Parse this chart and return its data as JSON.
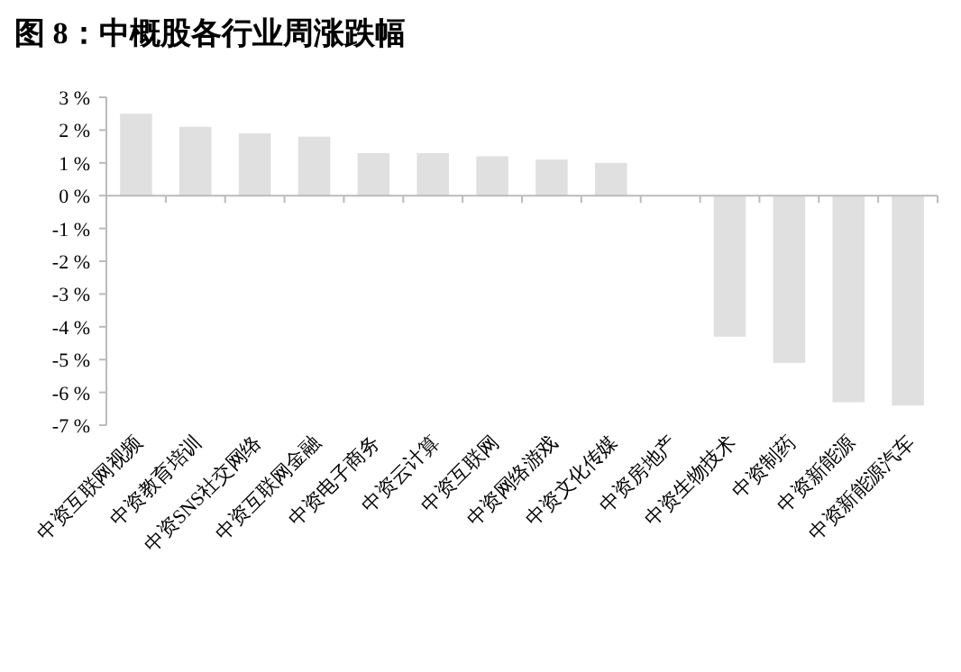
{
  "chart_data": {
    "type": "bar",
    "title": "图 8：中概股各行业周涨跌幅",
    "categories": [
      "中资互联网视频",
      "中资教育培训",
      "中资SNS社交网络",
      "中资互联网金融",
      "中资电子商务",
      "中资云计算",
      "中资互联网",
      "中资网络游戏",
      "中资文化传媒",
      "中资房地产",
      "中资生物技术",
      "中资制药",
      "中资新能源",
      "中资新能源汽车"
    ],
    "values": [
      2.5,
      2.1,
      1.9,
      1.8,
      1.3,
      1.3,
      1.2,
      1.1,
      1.0,
      0,
      -4.3,
      -5.1,
      -6.3,
      -6.4
    ],
    "color": "#e0e0e0",
    "ylim": [
      -7,
      3
    ],
    "yticks": [
      {
        "value": 3,
        "label": "3 %"
      },
      {
        "value": 2,
        "label": "2 %"
      },
      {
        "value": 1,
        "label": "1 %"
      },
      {
        "value": 0,
        "label": "0 %"
      },
      {
        "value": -1,
        "label": "-1 %"
      },
      {
        "value": -2,
        "label": "-2 %"
      },
      {
        "value": -3,
        "label": "-3 %"
      },
      {
        "value": -4,
        "label": "-4 %"
      },
      {
        "value": -5,
        "label": "-5 %"
      },
      {
        "value": -6,
        "label": "-6 %"
      },
      {
        "value": -7,
        "label": "-7 %"
      }
    ]
  }
}
